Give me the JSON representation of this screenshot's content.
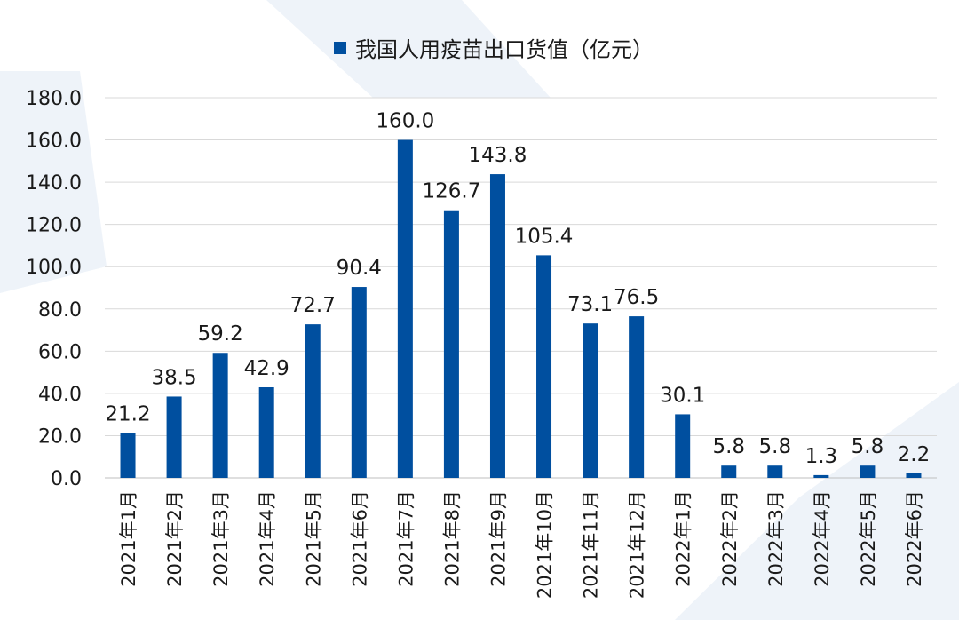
{
  "chart_data": {
    "type": "bar",
    "title": "",
    "xlabel": "",
    "ylabel": "",
    "legend": {
      "entries": [
        "我国人用疫苗出口货值（亿元）"
      ],
      "placement": "top"
    },
    "categories": [
      "2021年1月",
      "2021年2月",
      "2021年3月",
      "2021年4月",
      "2021年5月",
      "2021年6月",
      "2021年7月",
      "2021年8月",
      "2021年9月",
      "2021年10月",
      "2021年11月",
      "2021年12月",
      "2022年1月",
      "2022年2月",
      "2022年3月",
      "2022年4月",
      "2022年5月",
      "2022年6月"
    ],
    "series": [
      {
        "name": "我国人用疫苗出口货值（亿元）",
        "values": [
          21.2,
          38.5,
          59.2,
          42.9,
          72.7,
          90.4,
          160.0,
          126.7,
          143.8,
          105.4,
          73.1,
          76.5,
          30.1,
          5.8,
          5.8,
          1.3,
          5.8,
          2.2
        ]
      }
    ],
    "data_labels": [
      "21.2",
      "38.5",
      "59.2",
      "42.9",
      "72.7",
      "90.4",
      "160.0",
      "126.7",
      "143.8",
      "105.4",
      "73.1",
      "76.5",
      "30.1",
      "5.8",
      "5.8",
      "1.3",
      "5.8",
      "2.2"
    ],
    "yticks": [
      "0.0",
      "20.0",
      "40.0",
      "60.0",
      "80.0",
      "100.0",
      "120.0",
      "140.0",
      "160.0",
      "180.0"
    ],
    "ylim": [
      0,
      180
    ],
    "grid": true,
    "bar_color": "#004f9f"
  }
}
